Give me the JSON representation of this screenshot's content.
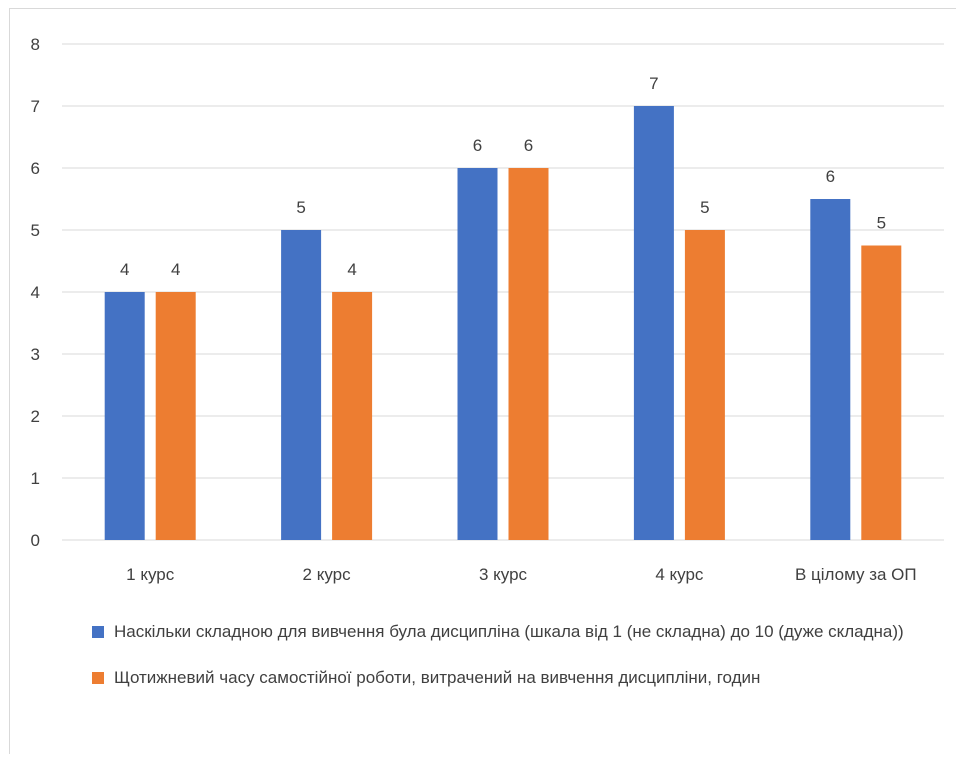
{
  "colors": {
    "series1": "#4472C4",
    "series2": "#ED7D31",
    "grid": "#d9d9d9",
    "text": "#404040"
  },
  "chart_data": {
    "type": "bar",
    "categories": [
      "1 курс",
      "2 курс",
      "3 курс",
      "4 курс",
      "В цілому за ОП"
    ],
    "ylim": [
      0,
      8
    ],
    "yticks": [
      "0",
      "1",
      "2",
      "3",
      "4",
      "5",
      "6",
      "7",
      "8"
    ],
    "grid": true,
    "legend_position": "bottom",
    "series": [
      {
        "name": "Наскільки складною для вивчення була дисципліна (шкала від 1 (не складна) до 10 (дуже складна))",
        "values": [
          4,
          5,
          6,
          7,
          5.5
        ],
        "labels": [
          "4",
          "5",
          "6",
          "7",
          "6"
        ],
        "color": "#4472C4"
      },
      {
        "name": "Щотижневий часу самостійної роботи, витрачений на вивчення дисципліни, годин",
        "values": [
          4,
          4,
          6,
          5,
          4.75
        ],
        "labels": [
          "4",
          "4",
          "6",
          "5",
          "5"
        ],
        "color": "#ED7D31"
      }
    ]
  }
}
